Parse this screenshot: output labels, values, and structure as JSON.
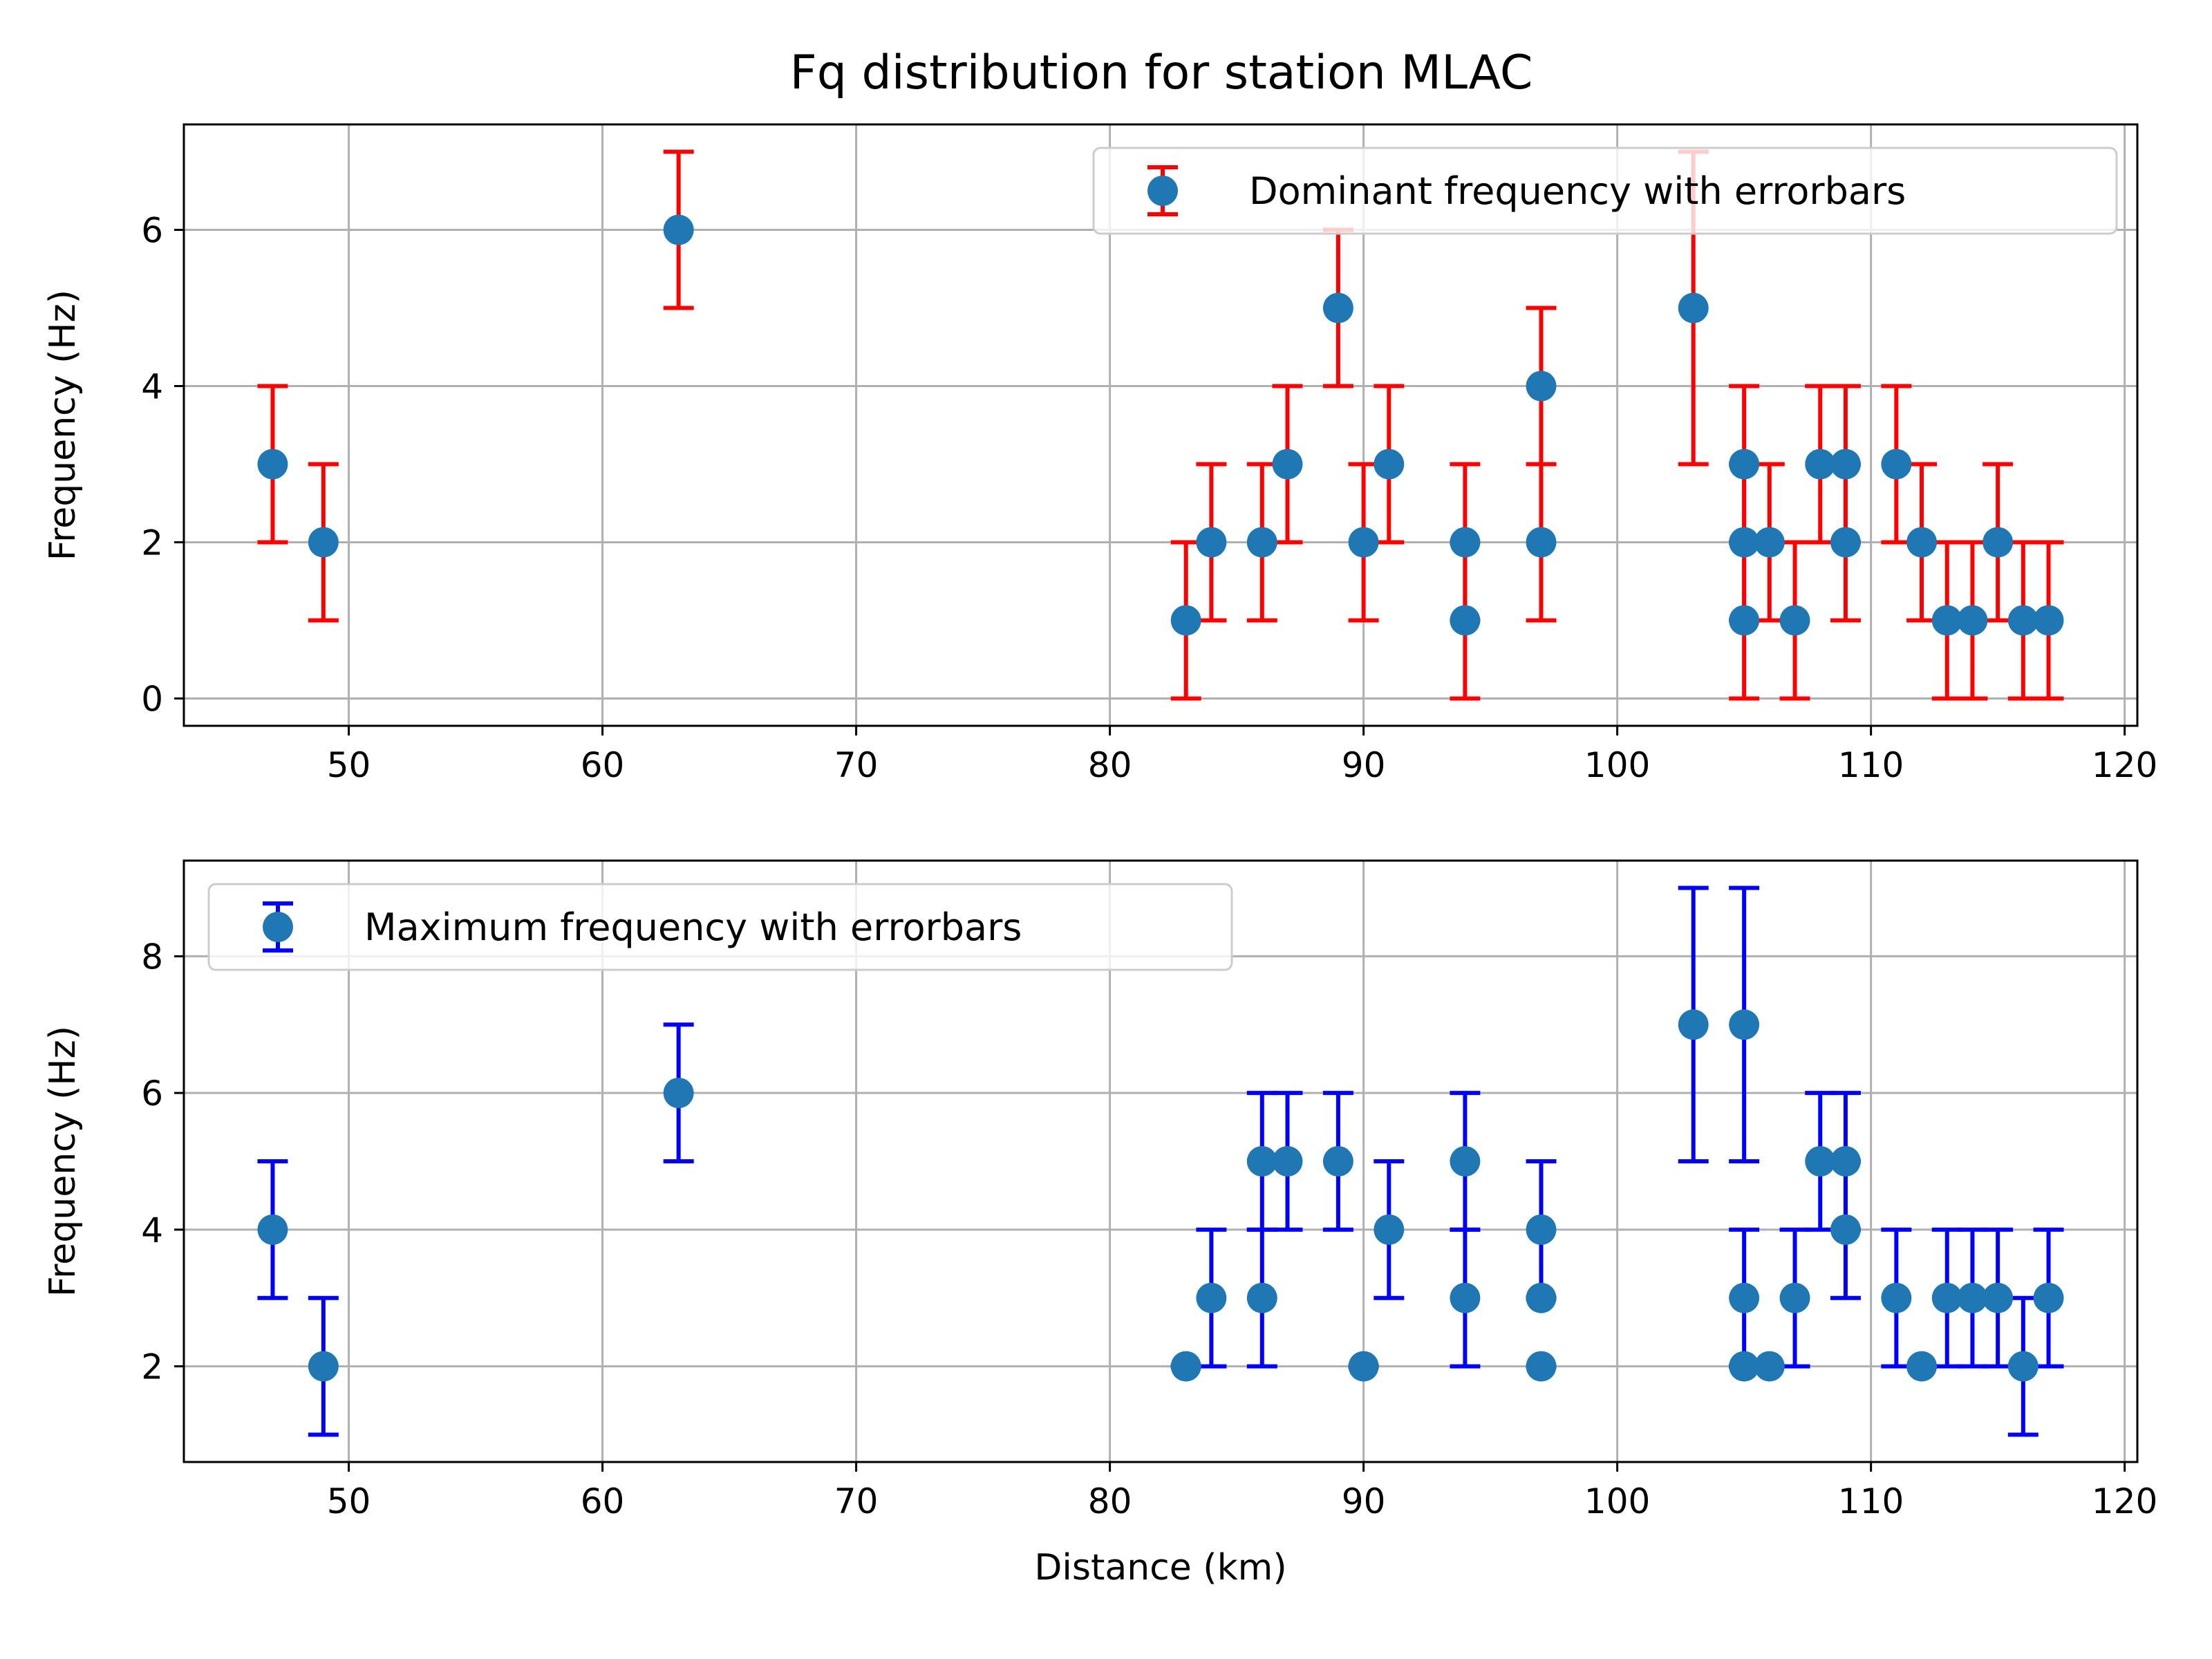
{
  "figure": {
    "title": "Fq distribution for station MLAC"
  },
  "chart_data": [
    {
      "type": "scatter",
      "title": "Fq distribution for station MLAC",
      "xlabel": "",
      "ylabel": "Frequency (Hz)",
      "xlim": [
        43.5,
        120.5
      ],
      "ylim": [
        -0.35,
        7.35
      ],
      "xticks": [
        50,
        60,
        70,
        80,
        90,
        100,
        110,
        120
      ],
      "yticks": [
        0,
        2,
        4,
        6
      ],
      "grid": true,
      "legend": "top-right",
      "series": [
        {
          "name": "Dominant frequency with errorbars",
          "marker_color": "#1f77b4",
          "errorbar_color": "#ff0000",
          "points": [
            {
              "x": 47,
              "y": 3,
              "err": 1
            },
            {
              "x": 49,
              "y": 2,
              "err": 1
            },
            {
              "x": 63,
              "y": 6,
              "err": 1
            },
            {
              "x": 83,
              "y": 1,
              "err": 1
            },
            {
              "x": 84,
              "y": 2,
              "err": 1
            },
            {
              "x": 86,
              "y": 2,
              "err": 1
            },
            {
              "x": 87,
              "y": 3,
              "err": 1
            },
            {
              "x": 89,
              "y": 5,
              "err": 1
            },
            {
              "x": 90,
              "y": 2,
              "err": 1
            },
            {
              "x": 91,
              "y": 3,
              "err": 1
            },
            {
              "x": 94,
              "y": 2,
              "err": 1
            },
            {
              "x": 94,
              "y": 1,
              "err": 1
            },
            {
              "x": 97,
              "y": 4,
              "err": 1
            },
            {
              "x": 97,
              "y": 2,
              "err": 1
            },
            {
              "x": 103,
              "y": 5,
              "err": 2
            },
            {
              "x": 105,
              "y": 3,
              "err": 1
            },
            {
              "x": 105,
              "y": 2,
              "err": 1
            },
            {
              "x": 105,
              "y": 1,
              "err": 1
            },
            {
              "x": 106,
              "y": 2,
              "err": 1
            },
            {
              "x": 107,
              "y": 1,
              "err": 1
            },
            {
              "x": 108,
              "y": 3,
              "err": 1
            },
            {
              "x": 109,
              "y": 3,
              "err": 1
            },
            {
              "x": 109,
              "y": 2,
              "err": 1
            },
            {
              "x": 111,
              "y": 3,
              "err": 1
            },
            {
              "x": 112,
              "y": 2,
              "err": 1
            },
            {
              "x": 113,
              "y": 1,
              "err": 1
            },
            {
              "x": 114,
              "y": 1,
              "err": 1
            },
            {
              "x": 115,
              "y": 2,
              "err": 1
            },
            {
              "x": 116,
              "y": 1,
              "err": 1
            },
            {
              "x": 117,
              "y": 1,
              "err": 1
            }
          ]
        }
      ]
    },
    {
      "type": "scatter",
      "title": "",
      "xlabel": "Distance (km)",
      "ylabel": "Frequency (Hz)",
      "xlim": [
        43.5,
        120.5
      ],
      "ylim": [
        0.6,
        9.4
      ],
      "xticks": [
        50,
        60,
        70,
        80,
        90,
        100,
        110,
        120
      ],
      "yticks": [
        2,
        4,
        6,
        8
      ],
      "grid": true,
      "legend": "top-left",
      "series": [
        {
          "name": "Maximum frequency with errorbars",
          "marker_color": "#1f77b4",
          "errorbar_color": "#0000ff",
          "points": [
            {
              "x": 47,
              "y": 4,
              "err": 1
            },
            {
              "x": 49,
              "y": 2,
              "err": 1
            },
            {
              "x": 63,
              "y": 6,
              "err": 1
            },
            {
              "x": 83,
              "y": 2,
              "err": 0
            },
            {
              "x": 84,
              "y": 3,
              "err": 1
            },
            {
              "x": 86,
              "y": 5,
              "err": 1
            },
            {
              "x": 86,
              "y": 3,
              "err": 1
            },
            {
              "x": 87,
              "y": 5,
              "err": 1
            },
            {
              "x": 89,
              "y": 5,
              "err": 1
            },
            {
              "x": 90,
              "y": 2,
              "err": 0
            },
            {
              "x": 91,
              "y": 4,
              "err": 1
            },
            {
              "x": 94,
              "y": 5,
              "err": 1
            },
            {
              "x": 94,
              "y": 3,
              "err": 1
            },
            {
              "x": 97,
              "y": 4,
              "err": 1
            },
            {
              "x": 97,
              "y": 3,
              "err": 0
            },
            {
              "x": 97,
              "y": 2,
              "err": 0
            },
            {
              "x": 103,
              "y": 7,
              "err": 2
            },
            {
              "x": 105,
              "y": 7,
              "err": 2
            },
            {
              "x": 105,
              "y": 3,
              "err": 1
            },
            {
              "x": 105,
              "y": 2,
              "err": 0
            },
            {
              "x": 106,
              "y": 2,
              "err": 0
            },
            {
              "x": 107,
              "y": 3,
              "err": 1
            },
            {
              "x": 108,
              "y": 5,
              "err": 1
            },
            {
              "x": 109,
              "y": 5,
              "err": 1
            },
            {
              "x": 109,
              "y": 4,
              "err": 1
            },
            {
              "x": 111,
              "y": 3,
              "err": 1
            },
            {
              "x": 112,
              "y": 2,
              "err": 0
            },
            {
              "x": 113,
              "y": 3,
              "err": 1
            },
            {
              "x": 114,
              "y": 3,
              "err": 1
            },
            {
              "x": 115,
              "y": 3,
              "err": 1
            },
            {
              "x": 116,
              "y": 2,
              "err": 1
            },
            {
              "x": 117,
              "y": 3,
              "err": 1
            }
          ]
        }
      ]
    }
  ]
}
